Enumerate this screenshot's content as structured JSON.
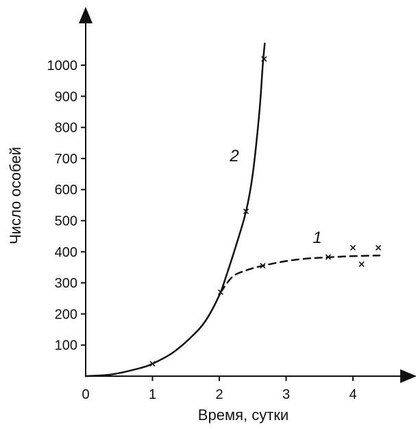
{
  "chart_data": {
    "type": "line",
    "title": "",
    "xlabel": "Время, сутки",
    "ylabel": "Число особей",
    "xlim": [
      0,
      4.8
    ],
    "ylim": [
      0,
      1120
    ],
    "grid": false,
    "x_ticks": [
      0,
      1,
      2,
      3,
      4
    ],
    "x_tick_labels": [
      "0",
      "1",
      "2",
      "3",
      "4"
    ],
    "y_ticks": [
      100,
      200,
      300,
      400,
      500,
      600,
      700,
      800,
      900,
      1000
    ],
    "y_tick_labels": [
      "100",
      "200",
      "300",
      "400",
      "500",
      "600",
      "700",
      "800",
      "900",
      "1000"
    ],
    "colors": {
      "ink": "#111111",
      "background": "#ffffff"
    },
    "series": [
      {
        "name": "2",
        "style": "solid",
        "curve": [
          [
            0,
            0
          ],
          [
            0.4,
            6
          ],
          [
            0.8,
            25
          ],
          [
            1.0,
            40
          ],
          [
            1.3,
            75
          ],
          [
            1.6,
            130
          ],
          [
            1.8,
            180
          ],
          [
            2.0,
            260
          ],
          [
            2.1,
            320
          ],
          [
            2.25,
            420
          ],
          [
            2.4,
            530
          ],
          [
            2.5,
            650
          ],
          [
            2.6,
            850
          ],
          [
            2.65,
            1000
          ],
          [
            2.68,
            1070
          ]
        ],
        "points": [
          [
            1.0,
            40
          ],
          [
            2.02,
            270
          ],
          [
            2.4,
            530
          ],
          [
            2.67,
            1020
          ]
        ]
      },
      {
        "name": "1",
        "style": "dashed",
        "curve": [
          [
            2.02,
            270
          ],
          [
            2.2,
            320
          ],
          [
            2.4,
            340
          ],
          [
            2.65,
            355
          ],
          [
            3.0,
            370
          ],
          [
            3.3,
            378
          ],
          [
            3.6,
            382
          ],
          [
            4.0,
            386
          ],
          [
            4.4,
            388
          ]
        ],
        "points": [
          [
            2.65,
            355
          ],
          [
            3.63,
            383
          ],
          [
            4.0,
            413
          ],
          [
            4.13,
            360
          ],
          [
            4.38,
            413
          ]
        ]
      }
    ]
  }
}
